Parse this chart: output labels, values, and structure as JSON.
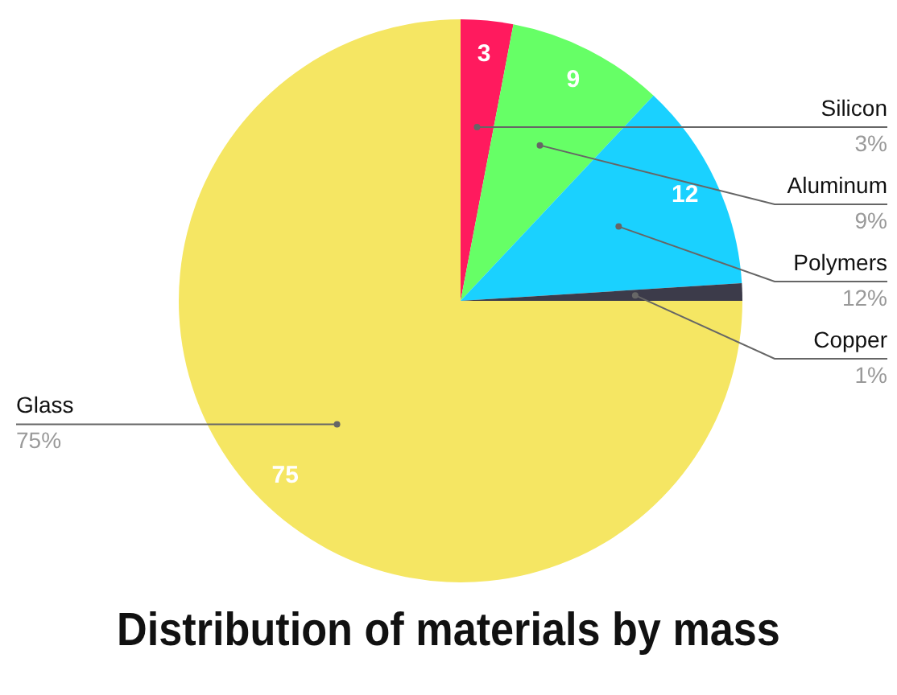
{
  "chart_data": {
    "type": "pie",
    "title": "Distribution of materials by mass",
    "categories": [
      "Silicon",
      "Aluminum",
      "Polymers",
      "Copper",
      "Glass"
    ],
    "values": [
      3,
      9,
      12,
      1,
      75
    ],
    "colors": [
      "#ff1a5e",
      "#66ff66",
      "#1ad1ff",
      "#3c3b4a",
      "#f5e663"
    ],
    "value_labels": [
      "3",
      "9",
      "12",
      null,
      "75"
    ],
    "annotations": [
      "3%",
      "9%",
      "12%",
      "1%",
      "75%"
    ],
    "legend": false
  }
}
